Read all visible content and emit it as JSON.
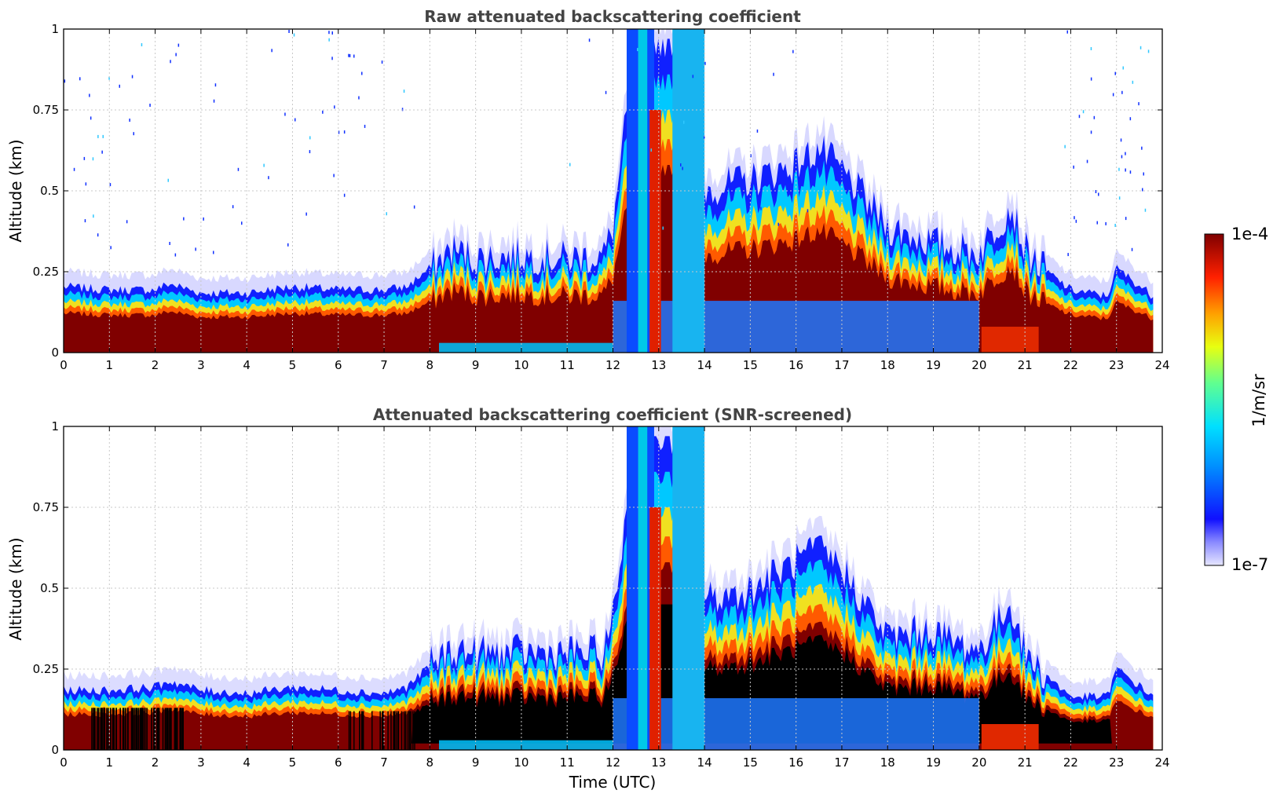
{
  "chart_data": [
    {
      "type": "heatmap",
      "title": "Raw attenuated backscattering coefficient",
      "xlabel": "",
      "ylabel": "Altitude (km)",
      "xlim": [
        0,
        24
      ],
      "ylim": [
        0,
        1
      ],
      "xticks": [
        "0",
        "1",
        "2",
        "3",
        "4",
        "5",
        "6",
        "7",
        "8",
        "9",
        "10",
        "11",
        "12",
        "13",
        "14",
        "15",
        "16",
        "17",
        "18",
        "19",
        "20",
        "21",
        "22",
        "23",
        "24"
      ],
      "yticks": [
        "0",
        "0.25",
        "0.5",
        "0.75",
        "1"
      ],
      "grid": true,
      "layer_top_km": {
        "time_utc": [
          0,
          1,
          2,
          2.3,
          3,
          4,
          5,
          6,
          7,
          7.5,
          8,
          8.5,
          9,
          10,
          11,
          11.8,
          12,
          12.5,
          13,
          13.5,
          14,
          15,
          16,
          16.5,
          17,
          18,
          19,
          19.5,
          20,
          20.7,
          21,
          21.3,
          22,
          22.8,
          23,
          23.8
        ],
        "altitude_km": [
          0.21,
          0.2,
          0.2,
          0.22,
          0.19,
          0.19,
          0.21,
          0.2,
          0.2,
          0.21,
          0.27,
          0.33,
          0.3,
          0.31,
          0.3,
          0.31,
          0.4,
          1.0,
          1.0,
          1.0,
          0.52,
          0.55,
          0.6,
          0.65,
          0.58,
          0.4,
          0.35,
          0.33,
          0.32,
          0.47,
          0.33,
          0.28,
          0.2,
          0.18,
          0.27,
          0.18
        ]
      }
    },
    {
      "type": "heatmap",
      "title": "Attenuated backscattering coefficient (SNR-screened)",
      "xlabel": "Time (UTC)",
      "ylabel": "Altitude (km)",
      "xlim": [
        0,
        24
      ],
      "ylim": [
        0,
        1
      ],
      "xticks": [
        "0",
        "1",
        "2",
        "3",
        "4",
        "5",
        "6",
        "7",
        "8",
        "9",
        "10",
        "11",
        "12",
        "13",
        "14",
        "15",
        "16",
        "17",
        "18",
        "19",
        "20",
        "21",
        "22",
        "23",
        "24"
      ],
      "yticks": [
        "0",
        "0.25",
        "0.5",
        "0.75",
        "1"
      ],
      "grid": true,
      "layer_top_km": {
        "time_utc": [
          0,
          1,
          2,
          2.3,
          3,
          4,
          5,
          6,
          7,
          7.5,
          8,
          8.5,
          9,
          10,
          11,
          11.8,
          12,
          12.5,
          13,
          13.5,
          14,
          15,
          16,
          16.5,
          17,
          18,
          19,
          19.5,
          20,
          20.7,
          21,
          21.3,
          22,
          22.8,
          23,
          23.8
        ],
        "altitude_km": [
          0.19,
          0.19,
          0.2,
          0.22,
          0.19,
          0.18,
          0.2,
          0.19,
          0.18,
          0.2,
          0.27,
          0.32,
          0.31,
          0.31,
          0.31,
          0.31,
          0.42,
          1.0,
          1.0,
          1.0,
          0.48,
          0.51,
          0.6,
          0.64,
          0.58,
          0.36,
          0.38,
          0.34,
          0.32,
          0.47,
          0.31,
          0.26,
          0.17,
          0.17,
          0.26,
          0.17
        ]
      }
    }
  ],
  "colorbar": {
    "max_label": "1e-4",
    "min_label": "1e-7",
    "unit_label": "1/m/sr",
    "colors": [
      "#7f0000",
      "#c80000",
      "#ff2a00",
      "#ff8c00",
      "#ffd000",
      "#e8ff12",
      "#8cff6a",
      "#3dffb9",
      "#00d4ff",
      "#0080ff",
      "#0020ff",
      "#3c3cff",
      "#9a9aff",
      "#e6e6ff"
    ]
  }
}
